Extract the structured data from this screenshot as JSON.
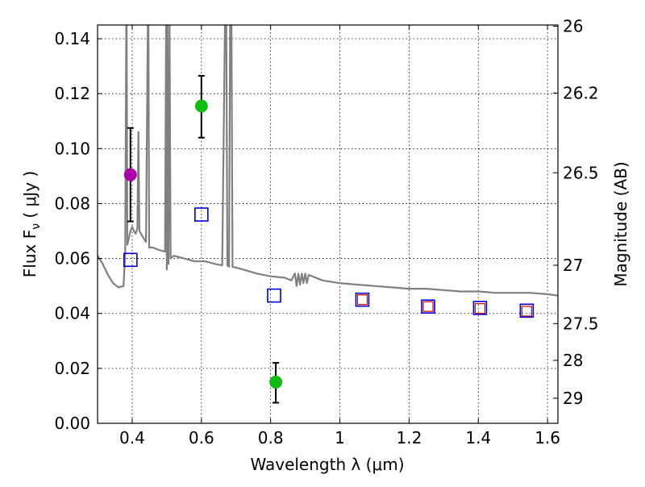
{
  "chart_data": {
    "type": "scatter",
    "xlabel": "Wavelength  λ (μm)",
    "ylabel_main": "Flux  F",
    "ylabel_sub": "ν",
    "ylabel_unit": " ( μJy )",
    "y2label": "Magnitude (AB)",
    "xlim": [
      0.3,
      1.63
    ],
    "ylim": [
      0.0,
      0.145
    ],
    "grid": true,
    "x_ticks": [
      {
        "v": 0.4,
        "label": "0.4"
      },
      {
        "v": 0.6,
        "label": "0.6"
      },
      {
        "v": 0.8,
        "label": "0.8"
      },
      {
        "v": 1.0,
        "label": "1"
      },
      {
        "v": 1.2,
        "label": "1.2"
      },
      {
        "v": 1.4,
        "label": "1.4"
      },
      {
        "v": 1.6,
        "label": "1.6"
      }
    ],
    "y_ticks": [
      {
        "v": 0.0,
        "label": "0.00"
      },
      {
        "v": 0.02,
        "label": "0.02"
      },
      {
        "v": 0.04,
        "label": "0.04"
      },
      {
        "v": 0.06,
        "label": "0.06"
      },
      {
        "v": 0.08,
        "label": "0.08"
      },
      {
        "v": 0.1,
        "label": "0.10"
      },
      {
        "v": 0.12,
        "label": "0.12"
      },
      {
        "v": 0.14,
        "label": "0.14"
      }
    ],
    "mag_ticks": [
      {
        "label": "26",
        "mag": 26.0
      },
      {
        "label": "26.2",
        "mag": 26.2
      },
      {
        "label": "26.5",
        "mag": 26.5
      },
      {
        "label": "27",
        "mag": 27.0
      },
      {
        "label": "27.5",
        "mag": 27.5
      },
      {
        "label": "28",
        "mag": 28.0
      },
      {
        "label": "29",
        "mag": 29.0
      }
    ],
    "sed_model": {
      "name": "model spectrum",
      "color": "#808080",
      "points": [
        [
          0.3,
          0.061
        ],
        [
          0.315,
          0.058
        ],
        [
          0.33,
          0.054
        ],
        [
          0.345,
          0.051
        ],
        [
          0.36,
          0.0495
        ],
        [
          0.375,
          0.05
        ],
        [
          0.38,
          0.062
        ],
        [
          0.383,
          0.145
        ],
        [
          0.384,
          0.145
        ],
        [
          0.386,
          0.065
        ],
        [
          0.39,
          0.067
        ],
        [
          0.395,
          0.07
        ],
        [
          0.4,
          0.0715
        ],
        [
          0.405,
          0.07
        ],
        [
          0.41,
          0.069
        ],
        [
          0.415,
          0.071
        ],
        [
          0.418,
          0.106
        ],
        [
          0.421,
          0.07
        ],
        [
          0.43,
          0.068
        ],
        [
          0.44,
          0.066
        ],
        [
          0.445,
          0.145
        ],
        [
          0.447,
          0.145
        ],
        [
          0.449,
          0.064
        ],
        [
          0.46,
          0.064
        ],
        [
          0.48,
          0.063
        ],
        [
          0.495,
          0.0625
        ],
        [
          0.498,
          0.145
        ],
        [
          0.5,
          0.056
        ],
        [
          0.502,
          0.145
        ],
        [
          0.505,
          0.058
        ],
        [
          0.508,
          0.145
        ],
        [
          0.511,
          0.06
        ],
        [
          0.52,
          0.061
        ],
        [
          0.55,
          0.06
        ],
        [
          0.58,
          0.059
        ],
        [
          0.61,
          0.059
        ],
        [
          0.64,
          0.058
        ],
        [
          0.66,
          0.0575
        ],
        [
          0.668,
          0.145
        ],
        [
          0.672,
          0.145
        ],
        [
          0.675,
          0.0575
        ],
        [
          0.68,
          0.057
        ],
        [
          0.683,
          0.145
        ],
        [
          0.687,
          0.145
        ],
        [
          0.69,
          0.057
        ],
        [
          0.72,
          0.056
        ],
        [
          0.76,
          0.0545
        ],
        [
          0.8,
          0.0535
        ],
        [
          0.84,
          0.053
        ],
        [
          0.86,
          0.052
        ],
        [
          0.87,
          0.0545
        ],
        [
          0.875,
          0.05
        ],
        [
          0.88,
          0.0545
        ],
        [
          0.885,
          0.0505
        ],
        [
          0.89,
          0.0545
        ],
        [
          0.895,
          0.051
        ],
        [
          0.9,
          0.0545
        ],
        [
          0.905,
          0.051
        ],
        [
          0.91,
          0.054
        ],
        [
          0.93,
          0.053
        ],
        [
          0.95,
          0.052
        ],
        [
          1.0,
          0.051
        ],
        [
          1.05,
          0.0505
        ],
        [
          1.1,
          0.05
        ],
        [
          1.15,
          0.0495
        ],
        [
          1.2,
          0.049
        ],
        [
          1.25,
          0.049
        ],
        [
          1.3,
          0.0485
        ],
        [
          1.35,
          0.048
        ],
        [
          1.4,
          0.048
        ],
        [
          1.45,
          0.0475
        ],
        [
          1.5,
          0.0475
        ],
        [
          1.55,
          0.0475
        ],
        [
          1.6,
          0.047
        ],
        [
          1.63,
          0.0465
        ]
      ]
    },
    "detections": [
      {
        "name": "purple detection",
        "x": 0.395,
        "y": 0.0905,
        "yerr_low": 0.0735,
        "yerr_high": 0.1075,
        "color": "#aa00aa"
      },
      {
        "name": "green detection 1",
        "x": 0.6,
        "y": 0.1155,
        "yerr_low": 0.104,
        "yerr_high": 0.1265,
        "color": "#11bb11"
      },
      {
        "name": "green detection 2",
        "x": 0.815,
        "y": 0.015,
        "yerr_low": 0.0075,
        "yerr_high": 0.022,
        "color": "#11bb11"
      }
    ],
    "model_photometry_blue": [
      {
        "x": 0.395,
        "y": 0.0595
      },
      {
        "x": 0.6,
        "y": 0.076
      },
      {
        "x": 0.81,
        "y": 0.0465
      },
      {
        "x": 1.065,
        "y": 0.045
      },
      {
        "x": 1.255,
        "y": 0.0425
      },
      {
        "x": 1.405,
        "y": 0.042
      },
      {
        "x": 1.54,
        "y": 0.041
      }
    ],
    "model_photometry_red": [
      {
        "x": 1.065,
        "y": 0.045
      },
      {
        "x": 1.255,
        "y": 0.0425
      },
      {
        "x": 1.405,
        "y": 0.0418
      },
      {
        "x": 1.54,
        "y": 0.0408
      }
    ]
  }
}
